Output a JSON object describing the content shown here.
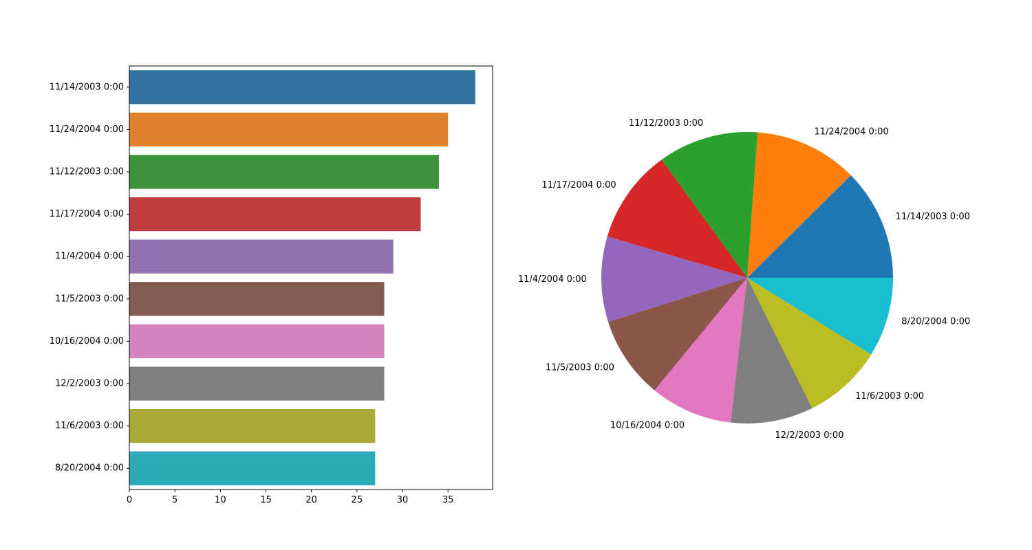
{
  "chart_data": [
    {
      "type": "bar",
      "orientation": "horizontal",
      "categories": [
        "11/14/2003 0:00",
        "11/24/2004 0:00",
        "11/12/2003 0:00",
        "11/17/2004 0:00",
        "11/4/2004 0:00",
        "11/5/2003 0:00",
        "10/16/2004 0:00",
        "12/2/2003 0:00",
        "11/6/2003 0:00",
        "8/20/2004 0:00"
      ],
      "values": [
        38,
        35,
        34,
        32,
        29,
        28,
        28,
        28,
        27,
        27
      ],
      "colors": [
        "#3274a1",
        "#e1812c",
        "#3a923a",
        "#c03d3e",
        "#9372b2",
        "#845b53",
        "#d684bd",
        "#7f7f7f",
        "#a9aa35",
        "#2eabb8"
      ],
      "xticks": [
        0,
        5,
        10,
        15,
        20,
        25,
        30,
        35
      ],
      "xlim": [
        0,
        39.9
      ],
      "title": "",
      "xlabel": "",
      "ylabel": "",
      "grid": false
    },
    {
      "type": "pie",
      "labels": [
        "11/14/2003 0:00",
        "11/24/2004 0:00",
        "11/12/2003 0:00",
        "11/17/2004 0:00",
        "11/4/2004 0:00",
        "11/5/2003 0:00",
        "10/16/2004 0:00",
        "12/2/2003 0:00",
        "11/6/2003 0:00",
        "8/20/2004 0:00"
      ],
      "values": [
        38,
        35,
        34,
        32,
        29,
        28,
        28,
        28,
        27,
        27
      ],
      "colors": [
        "#1f77b4",
        "#ff7f0e",
        "#2ca02c",
        "#d62728",
        "#9467bd",
        "#8c564b",
        "#e377c2",
        "#7f7f7f",
        "#bcbd22",
        "#17becf"
      ],
      "start_angle": 0,
      "direction": "counterclockwise",
      "title": ""
    }
  ]
}
